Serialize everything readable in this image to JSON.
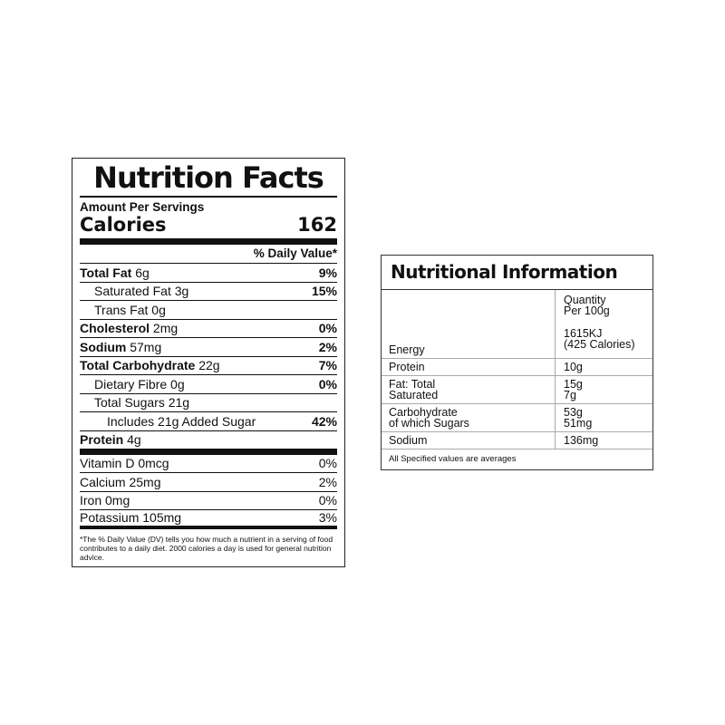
{
  "nutrition_facts": {
    "title": "Nutrition Facts",
    "amount_per": "Amount Per Servings",
    "calories_label": "Calories",
    "calories_value": "162",
    "daily_value_header": "% Daily Value*",
    "rows": [
      {
        "name": "Total Fat",
        "amount": "6g",
        "dv": "9%"
      },
      {
        "name": "Saturated Fat",
        "amount": "3g",
        "dv": "15%"
      },
      {
        "name": "Trans Fat",
        "amount": "0g",
        "dv": ""
      },
      {
        "name": "Cholesterol",
        "amount": "2mg",
        "dv": "0%"
      },
      {
        "name": "Sodium",
        "amount": "57mg",
        "dv": "2%"
      },
      {
        "name": "Total Carbohydrate",
        "amount": "22g",
        "dv": "7%"
      },
      {
        "name": "Dietary Fibre",
        "amount": "0g",
        "dv": "0%"
      },
      {
        "name": "Total Sugars",
        "amount": "21g",
        "dv": ""
      },
      {
        "name": "Includes 21g Added Sugar",
        "amount": "",
        "dv": "42%"
      },
      {
        "name": "Protein",
        "amount": "4g",
        "dv": ""
      },
      {
        "name": "Vitamin D",
        "amount": "0mcg",
        "dv": "0%"
      },
      {
        "name": "Calcium",
        "amount": "25mg",
        "dv": "2%"
      },
      {
        "name": "Iron",
        "amount": "0mg",
        "dv": "0%"
      },
      {
        "name": "Potassium",
        "amount": "105mg",
        "dv": "3%"
      }
    ],
    "footnote": "*The % Daily Value (DV) tells you how much a nutrient in a serving of food contributes to a daily diet. 2000 calories a day is used for general nutrition advice."
  },
  "nutritional_information": {
    "title": "Nutritional Information",
    "quantity_header_1": "Quantity",
    "quantity_header_2": "Per 100g",
    "rows": [
      {
        "label_1": "Energy",
        "label_2": "",
        "value_1": "1615KJ",
        "value_2": "(425 Calories)"
      },
      {
        "label_1": "Protein",
        "label_2": "",
        "value_1": "10g",
        "value_2": ""
      },
      {
        "label_1": "Fat: Total",
        "label_2": "Saturated",
        "value_1": "15g",
        "value_2": "7g"
      },
      {
        "label_1": "Carbohydrate",
        "label_2": "of which Sugars",
        "value_1": "53g",
        "value_2": "51mg"
      },
      {
        "label_1": "Sodium",
        "label_2": "",
        "value_1": "136mg",
        "value_2": ""
      }
    ],
    "note": "All Specified values are averages"
  }
}
